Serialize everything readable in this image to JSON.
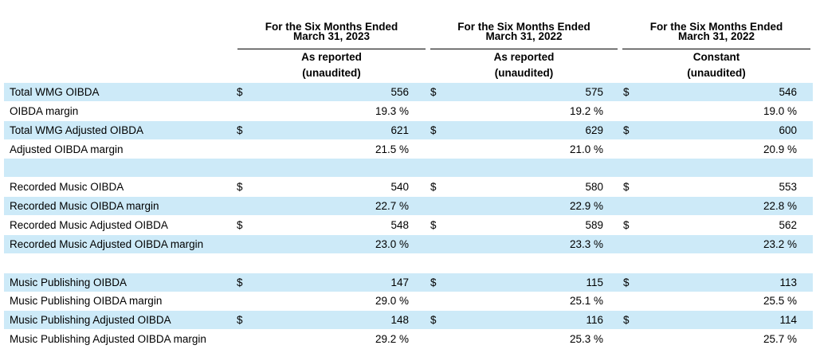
{
  "headers": [
    {
      "period_line1": "For the Six Months Ended",
      "period_line2": "March 31, 2023",
      "basis_line1": "As reported",
      "basis_line2": "(unaudited)"
    },
    {
      "period_line1": "For the Six Months Ended",
      "period_line2": "March 31, 2022",
      "basis_line1": "As reported",
      "basis_line2": "(unaudited)"
    },
    {
      "period_line1": "For the Six Months Ended",
      "period_line2": "March 31, 2022",
      "basis_line1": "Constant",
      "basis_line2": "(unaudited)"
    }
  ],
  "colors": {
    "row_shade": "#cdeaf8"
  },
  "rows": [
    {
      "label": "Total WMG OIBDA",
      "cells": [
        {
          "currency": "$",
          "value": "556"
        },
        {
          "currency": "$",
          "value": "575"
        },
        {
          "currency": "$",
          "value": "546"
        }
      ]
    },
    {
      "label": "OIBDA margin",
      "cells": [
        {
          "currency": "",
          "value": "19.3 %"
        },
        {
          "currency": "",
          "value": "19.2 %"
        },
        {
          "currency": "",
          "value": "19.0 %"
        }
      ]
    },
    {
      "label": "Total WMG Adjusted OIBDA",
      "cells": [
        {
          "currency": "$",
          "value": "621"
        },
        {
          "currency": "$",
          "value": "629"
        },
        {
          "currency": "$",
          "value": "600"
        }
      ]
    },
    {
      "label": "Adjusted OIBDA margin",
      "cells": [
        {
          "currency": "",
          "value": "21.5 %"
        },
        {
          "currency": "",
          "value": "21.0 %"
        },
        {
          "currency": "",
          "value": "20.9 %"
        }
      ]
    },
    {
      "label": "",
      "cells": [
        {
          "currency": "",
          "value": ""
        },
        {
          "currency": "",
          "value": ""
        },
        {
          "currency": "",
          "value": ""
        }
      ]
    },
    {
      "label": "Recorded Music OIBDA",
      "cells": [
        {
          "currency": "$",
          "value": "540"
        },
        {
          "currency": "$",
          "value": "580"
        },
        {
          "currency": "$",
          "value": "553"
        }
      ]
    },
    {
      "label": "Recorded Music OIBDA margin",
      "cells": [
        {
          "currency": "",
          "value": "22.7 %"
        },
        {
          "currency": "",
          "value": "22.9 %"
        },
        {
          "currency": "",
          "value": "22.8 %"
        }
      ]
    },
    {
      "label": "Recorded Music Adjusted OIBDA",
      "cells": [
        {
          "currency": "$",
          "value": "548"
        },
        {
          "currency": "$",
          "value": "589"
        },
        {
          "currency": "$",
          "value": "562"
        }
      ]
    },
    {
      "label": "Recorded Music Adjusted OIBDA margin",
      "cells": [
        {
          "currency": "",
          "value": "23.0 %"
        },
        {
          "currency": "",
          "value": "23.3 %"
        },
        {
          "currency": "",
          "value": "23.2 %"
        }
      ]
    },
    {
      "label": "",
      "cells": [
        {
          "currency": "",
          "value": ""
        },
        {
          "currency": "",
          "value": ""
        },
        {
          "currency": "",
          "value": ""
        }
      ]
    },
    {
      "label": "Music Publishing OIBDA",
      "cells": [
        {
          "currency": "$",
          "value": "147"
        },
        {
          "currency": "$",
          "value": "115"
        },
        {
          "currency": "$",
          "value": "113"
        }
      ]
    },
    {
      "label": "Music Publishing OIBDA margin",
      "cells": [
        {
          "currency": "",
          "value": "29.0 %"
        },
        {
          "currency": "",
          "value": "25.1 %"
        },
        {
          "currency": "",
          "value": "25.5 %"
        }
      ]
    },
    {
      "label": "Music Publishing Adjusted OIBDA",
      "cells": [
        {
          "currency": "$",
          "value": "148"
        },
        {
          "currency": "$",
          "value": "116"
        },
        {
          "currency": "$",
          "value": "114"
        }
      ]
    },
    {
      "label": "Music Publishing Adjusted OIBDA margin",
      "cells": [
        {
          "currency": "",
          "value": "29.2 %"
        },
        {
          "currency": "",
          "value": "25.3 %"
        },
        {
          "currency": "",
          "value": "25.7 %"
        }
      ]
    }
  ]
}
